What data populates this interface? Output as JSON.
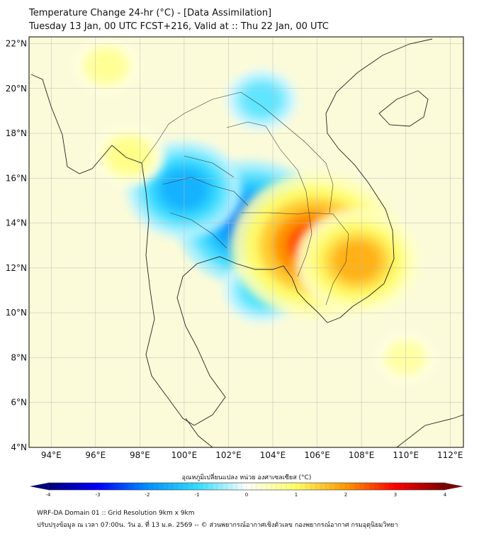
{
  "title": {
    "line1": "Temperature Change 24-hr (°C) - [Data Assimilation]",
    "line2": "Tuesday 13 Jan, 00 UTC FCST+216, Valid at :: Thu 22 Jan, 00 UTC"
  },
  "map_data": {
    "lat_labels": [
      "22°N",
      "20°N",
      "18°N",
      "16°N",
      "14°N",
      "12°N",
      "10°N",
      "8°N",
      "6°N",
      "4°N"
    ],
    "lon_labels": [
      "94°E",
      "96°E",
      "98°E",
      "100°E",
      "102°E",
      "104°E",
      "106°E",
      "108°E",
      "110°E",
      "112°E"
    ],
    "lat_range": [
      4,
      22.3
    ],
    "lon_range": [
      93,
      112.6
    ],
    "anomalies": [
      {
        "name": "cold-core-central-thailand",
        "lon": 103.0,
        "lat": 14.0,
        "value": -2.2
      },
      {
        "name": "cold-west-thailand",
        "lon": 100.0,
        "lat": 15.5,
        "value": -1.6
      },
      {
        "name": "cold-north-laos",
        "lon": 103.5,
        "lat": 19.5,
        "value": -0.8
      },
      {
        "name": "cold-gulf-thailand",
        "lon": 103.5,
        "lat": 11.0,
        "value": -0.9
      },
      {
        "name": "warm-core-cambodia",
        "lon": 105.9,
        "lat": 13.0,
        "value": 2.6
      },
      {
        "name": "warm-south-vietnam",
        "lon": 107.8,
        "lat": 12.3,
        "value": 1.8
      },
      {
        "name": "warm-myanmar-coast",
        "lon": 97.5,
        "lat": 17.0,
        "value": 0.8
      },
      {
        "name": "warm-north-myanmar",
        "lon": 96.5,
        "lat": 21.0,
        "value": 0.7
      },
      {
        "name": "warm-south-china-sea",
        "lon": 110.0,
        "lat": 8.0,
        "value": 0.6
      }
    ]
  },
  "colorbar": {
    "label": "อุณหภูมิเปลี่ยนแปลง หน่วย องศาเซลเซียส (°C)",
    "min": -4,
    "max": 4,
    "ticks": [
      "-4",
      "-3",
      "-2",
      "-1",
      "0",
      "1",
      "2",
      "3",
      "4"
    ],
    "stops": [
      "#00007a",
      "#0000ff",
      "#0090ff",
      "#33ddff",
      "#ffffff",
      "#ffff66",
      "#ff9900",
      "#ff0000",
      "#7a0000"
    ]
  },
  "footer": {
    "line1": "WRF-DA Domain 01 :: Grid Resolution 9km x 9km",
    "line2": "ปรับปรุงข้อมูล ณ เวลา 07:00น. วัน อ. ที่ 13 ม.ค. 2569 -- © ส่วนพยากรณ์อากาศเชิงตัวเลข กองพยากรณ์อากาศ กรมอุตุนิยมวิทยา"
  }
}
